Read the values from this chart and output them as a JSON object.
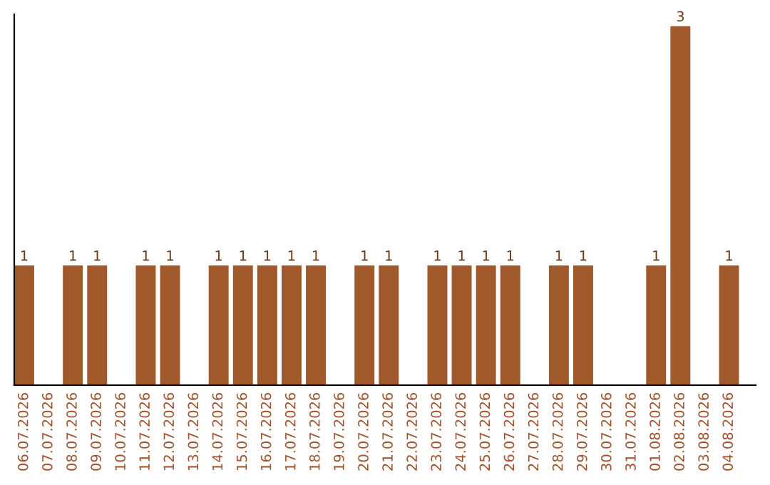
{
  "chart_data": {
    "type": "bar",
    "categories": [
      "06.07.2026",
      "07.07.2026",
      "08.07.2026",
      "09.07.2026",
      "10.07.2026",
      "11.07.2026",
      "12.07.2026",
      "13.07.2026",
      "14.07.2026",
      "15.07.2026",
      "16.07.2026",
      "17.07.2026",
      "18.07.2026",
      "19.07.2026",
      "20.07.2026",
      "21.07.2026",
      "22.07.2026",
      "23.07.2026",
      "24.07.2026",
      "25.07.2026",
      "26.07.2026",
      "27.07.2026",
      "28.07.2026",
      "29.07.2026",
      "30.07.2026",
      "31.07.2026",
      "01.08.2026",
      "02.08.2026",
      "03.08.2026",
      "04.08.2026"
    ],
    "values": [
      1,
      0,
      1,
      1,
      0,
      1,
      1,
      0,
      1,
      1,
      1,
      1,
      1,
      0,
      1,
      1,
      0,
      1,
      1,
      1,
      1,
      0,
      1,
      1,
      0,
      0,
      1,
      3,
      0,
      1
    ],
    "value_labels": [
      "1",
      null,
      "1",
      "1",
      null,
      "1",
      "1",
      null,
      "1",
      "1",
      "1",
      "1",
      "1",
      null,
      "1",
      "1",
      null,
      "1",
      "1",
      "1",
      "1",
      null,
      "1",
      "1",
      null,
      null,
      "1",
      "3",
      null,
      "1"
    ],
    "color": "#a0592a",
    "ylim": [
      0,
      3.1
    ],
    "tick_labels": "x",
    "grid": false,
    "legend": false
  }
}
